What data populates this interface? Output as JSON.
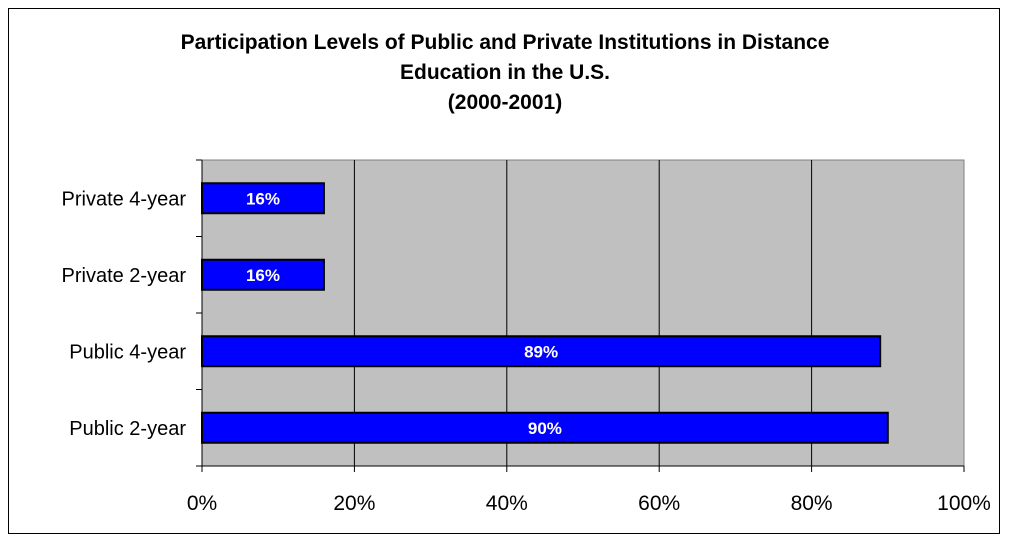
{
  "chart_data": {
    "type": "bar",
    "orientation": "horizontal",
    "title_lines": [
      "Participation Levels of Public and Private Institutions in Distance",
      "Education in the U.S.",
      "(2000-2001)"
    ],
    "categories": [
      "Public 2-year",
      "Public 4-year",
      "Private 2-year",
      "Private 4-year"
    ],
    "values": [
      90,
      89,
      16,
      16
    ],
    "data_labels": [
      "90%",
      "89%",
      "16%",
      "16%"
    ],
    "x_ticks": [
      0,
      20,
      40,
      60,
      80,
      100
    ],
    "x_tick_labels": [
      "0%",
      "20%",
      "40%",
      "60%",
      "80%",
      "100%"
    ],
    "xlim": [
      0,
      100
    ],
    "xlabel": "",
    "ylabel": "",
    "grid": true,
    "legend": "none",
    "colors": {
      "bar_fill": "#0000ff",
      "bar_stroke": "#000000",
      "plot_background": "#c0c0c0",
      "data_label_text": "#ffffff"
    }
  }
}
